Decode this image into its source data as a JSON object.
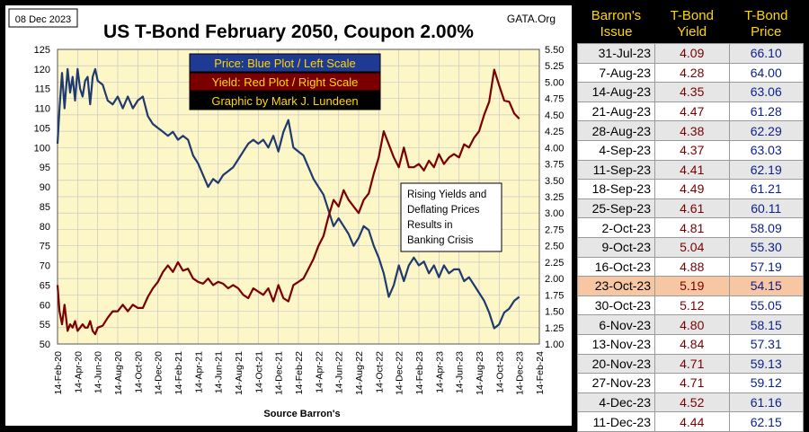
{
  "chart_data": {
    "type": "line",
    "date_label": "08 Dec 2023",
    "title": "US T-Bond February 2050, Coupon 2.00%",
    "source_tag": "GATA.Org",
    "xlabel": "Source Barron's",
    "x_ticks": [
      "14-Feb-20",
      "14-Apr-20",
      "14-Jun-20",
      "14-Aug-20",
      "14-Oct-20",
      "14-Dec-20",
      "14-Feb-21",
      "14-Apr-21",
      "14-Jun-21",
      "14-Aug-21",
      "14-Oct-21",
      "14-Dec-21",
      "14-Feb-22",
      "14-Apr-22",
      "14-Jun-22",
      "14-Aug-22",
      "14-Oct-22",
      "14-Dec-22",
      "14-Feb-23",
      "14-Apr-23",
      "14-Jun-23",
      "14-Aug-23",
      "14-Oct-23",
      "14-Dec-23",
      "14-Feb-24"
    ],
    "left_axis": {
      "label": "Price",
      "ylim": [
        50,
        125
      ],
      "ticks": [
        50,
        55,
        60,
        65,
        70,
        75,
        80,
        85,
        90,
        95,
        100,
        105,
        110,
        115,
        120,
        125
      ]
    },
    "right_axis": {
      "label": "Yield",
      "ylim": [
        1.0,
        5.5
      ],
      "ticks": [
        "1.00",
        "1.25",
        "1.50",
        "1.75",
        "2.00",
        "2.25",
        "2.50",
        "2.75",
        "3.00",
        "3.25",
        "3.50",
        "3.75",
        "4.00",
        "4.25",
        "4.50",
        "4.75",
        "5.00",
        "5.25",
        "5.50"
      ]
    },
    "legend": [
      {
        "text": "Price:  Blue Plot / Left Scale",
        "bg": "#1f3a93",
        "fg": "#ffd700"
      },
      {
        "text": "Yield:  Red Plot / Right Scale",
        "bg": "#7a0000",
        "fg": "#ffd700"
      },
      {
        "text": "Graphic by Mark J. Lundeen",
        "bg": "#000000",
        "fg": "#ffd700"
      }
    ],
    "annotation": [
      "Rising Yields and",
      "Deflating Prices",
      "Results in",
      "Banking Crisis"
    ],
    "series": [
      {
        "name": "Price",
        "axis": "left",
        "color": "#1f3a6e",
        "x": [
          0,
          0.2,
          0.45,
          0.7,
          1,
          1.25,
          1.5,
          1.75,
          2,
          2.25,
          2.5,
          2.75,
          3,
          3.25,
          3.5,
          3.75,
          4,
          4.5,
          5,
          5.5,
          6,
          6.5,
          7,
          7.5,
          8,
          8.5,
          9,
          9.5,
          10,
          10.5,
          11,
          11.5,
          12,
          12.5,
          13,
          13.5,
          14,
          14.5,
          15,
          15.5,
          16,
          16.5,
          17,
          17.5,
          18,
          18.5,
          19,
          19.5,
          20,
          20.5,
          21,
          21.5,
          22,
          22.5,
          23,
          23.5,
          24,
          24.5,
          25,
          25.5,
          26,
          26.5,
          27,
          27.5,
          28,
          28.5,
          29,
          29.5,
          30,
          30.5,
          31,
          31.5,
          32,
          32.5,
          33,
          33.5,
          34,
          34.5,
          35,
          35.5,
          36,
          36.5,
          37,
          37.5,
          38,
          38.5,
          39,
          39.5,
          40,
          40.5,
          41,
          41.5,
          42,
          42.5,
          43,
          43.5,
          44,
          44.5,
          45,
          45.5,
          46
        ],
        "values": [
          101,
          110,
          119,
          110,
          120,
          114,
          118,
          112,
          120,
          115,
          113,
          117,
          118,
          111,
          118,
          120,
          117,
          116,
          112,
          111,
          113,
          110,
          113,
          110,
          112,
          113,
          108,
          106,
          105,
          104,
          103,
          104,
          102,
          103,
          102,
          98,
          96,
          93,
          90,
          92,
          91,
          93,
          94,
          95,
          97,
          99,
          101,
          102,
          101,
          102,
          100,
          103,
          99,
          104,
          107,
          100,
          99,
          98,
          95,
          92,
          90,
          88,
          84,
          80,
          82,
          80,
          78,
          75,
          77,
          80,
          79,
          75,
          72,
          68,
          62,
          65,
          70,
          66,
          70,
          72,
          70,
          71,
          68,
          70,
          67,
          70,
          68,
          69,
          69,
          66,
          67,
          65,
          63,
          61,
          58,
          54,
          55,
          58,
          59,
          61,
          62
        ]
      },
      {
        "name": "Yield",
        "axis": "right",
        "color": "#7a0000",
        "x": [
          0,
          0.2,
          0.45,
          0.7,
          1,
          1.25,
          1.5,
          1.75,
          2,
          2.25,
          2.5,
          2.75,
          3,
          3.25,
          3.5,
          3.75,
          4,
          4.5,
          5,
          5.5,
          6,
          6.5,
          7,
          7.5,
          8,
          8.5,
          9,
          9.5,
          10,
          10.5,
          11,
          11.5,
          12,
          12.5,
          13,
          13.5,
          14,
          14.5,
          15,
          15.5,
          16,
          16.5,
          17,
          17.5,
          18,
          18.5,
          19,
          19.5,
          20,
          20.5,
          21,
          21.5,
          22,
          22.5,
          23,
          23.5,
          24,
          24.5,
          25,
          25.5,
          26,
          26.5,
          27,
          27.5,
          28,
          28.5,
          29,
          29.5,
          30,
          30.5,
          31,
          31.5,
          32,
          32.5,
          33,
          33.5,
          34,
          34.5,
          35,
          35.5,
          36,
          36.5,
          37,
          37.5,
          38,
          38.5,
          39,
          39.5,
          40,
          40.5,
          41,
          41.5,
          42,
          42.5,
          43,
          43.5,
          44,
          44.5,
          45,
          45.5,
          46
        ],
        "values": [
          1.9,
          1.5,
          1.3,
          1.6,
          1.2,
          1.3,
          1.25,
          1.35,
          1.2,
          1.25,
          1.3,
          1.25,
          1.25,
          1.35,
          1.2,
          1.15,
          1.25,
          1.28,
          1.4,
          1.5,
          1.5,
          1.6,
          1.5,
          1.6,
          1.55,
          1.55,
          1.72,
          1.85,
          1.95,
          2.1,
          2.2,
          2.1,
          2.25,
          2.12,
          2.15,
          2.0,
          1.95,
          1.92,
          2.0,
          1.9,
          1.95,
          1.92,
          1.85,
          1.9,
          1.85,
          1.75,
          1.7,
          1.85,
          1.8,
          1.75,
          1.85,
          1.65,
          1.9,
          1.7,
          1.65,
          1.9,
          1.95,
          2.0,
          2.15,
          2.3,
          2.5,
          2.65,
          2.95,
          3.2,
          3.1,
          3.35,
          3.2,
          3.1,
          3.0,
          3.2,
          3.3,
          3.6,
          3.85,
          4.25,
          4.05,
          3.85,
          3.7,
          4.0,
          3.7,
          3.7,
          3.75,
          3.65,
          3.8,
          3.7,
          3.9,
          3.75,
          3.85,
          3.9,
          3.85,
          4.05,
          4.0,
          4.15,
          4.25,
          4.5,
          4.7,
          5.19,
          4.95,
          4.72,
          4.7,
          4.52,
          4.44
        ]
      }
    ]
  },
  "table": {
    "headers": [
      "Barron's\nIssue",
      "T-Bond\nYield",
      "T-Bond\nPrice"
    ],
    "rows": [
      {
        "issue": "31-Jul-23",
        "yield": "4.09",
        "price": "66.10",
        "style": "shade"
      },
      {
        "issue": "7-Aug-23",
        "yield": "4.28",
        "price": "64.00",
        "style": ""
      },
      {
        "issue": "14-Aug-23",
        "yield": "4.35",
        "price": "63.06",
        "style": "shade"
      },
      {
        "issue": "21-Aug-23",
        "yield": "4.47",
        "price": "61.28",
        "style": ""
      },
      {
        "issue": "28-Aug-23",
        "yield": "4.38",
        "price": "62.29",
        "style": "shade"
      },
      {
        "issue": "4-Sep-23",
        "yield": "4.37",
        "price": "63.03",
        "style": ""
      },
      {
        "issue": "11-Sep-23",
        "yield": "4.41",
        "price": "62.19",
        "style": "shade"
      },
      {
        "issue": "18-Sep-23",
        "yield": "4.49",
        "price": "61.21",
        "style": ""
      },
      {
        "issue": "25-Sep-23",
        "yield": "4.61",
        "price": "60.11",
        "style": "shade"
      },
      {
        "issue": "2-Oct-23",
        "yield": "4.81",
        "price": "58.09",
        "style": ""
      },
      {
        "issue": "9-Oct-23",
        "yield": "5.04",
        "price": "55.30",
        "style": "shade"
      },
      {
        "issue": "16-Oct-23",
        "yield": "4.88",
        "price": "57.19",
        "style": ""
      },
      {
        "issue": "23-Oct-23",
        "yield": "5.19",
        "price": "54.15",
        "style": "hl"
      },
      {
        "issue": "30-Oct-23",
        "yield": "5.12",
        "price": "55.05",
        "style": ""
      },
      {
        "issue": "6-Nov-23",
        "yield": "4.80",
        "price": "58.15",
        "style": "shade"
      },
      {
        "issue": "13-Nov-23",
        "yield": "4.84",
        "price": "57.31",
        "style": ""
      },
      {
        "issue": "20-Nov-23",
        "yield": "4.71",
        "price": "59.13",
        "style": "shade"
      },
      {
        "issue": "27-Nov-23",
        "yield": "4.71",
        "price": "59.12",
        "style": ""
      },
      {
        "issue": "4-Dec-23",
        "yield": "4.52",
        "price": "61.16",
        "style": "shade"
      },
      {
        "issue": "11-Dec-23",
        "yield": "4.44",
        "price": "62.15",
        "style": ""
      }
    ]
  }
}
